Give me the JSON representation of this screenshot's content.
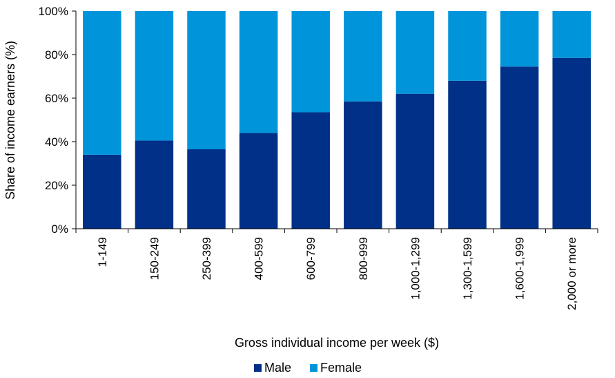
{
  "chart_data": {
    "type": "bar",
    "stacked": true,
    "categories": [
      "1-149",
      "150-249",
      "250-399",
      "400-599",
      "600-799",
      "800-999",
      "1,000-1,299",
      "1,300-1,599",
      "1,600-1,999",
      "2,000 or more"
    ],
    "series": [
      {
        "name": "Male",
        "color": "#003087",
        "values": [
          34,
          40.5,
          36.5,
          44,
          53.5,
          58.5,
          62,
          68,
          74.5,
          78.5
        ]
      },
      {
        "name": "Female",
        "color": "#0095DA",
        "values": [
          66,
          59.5,
          63.5,
          56,
          46.5,
          41.5,
          38,
          32,
          25.5,
          21.5
        ]
      }
    ],
    "title": "",
    "xlabel": "Gross individual income per week ($)",
    "ylabel": "Share of income earners (%)",
    "ylim": [
      0,
      100
    ],
    "yticks": [
      "0%",
      "20%",
      "40%",
      "60%",
      "80%",
      "100%"
    ],
    "grid": false,
    "legend": "bottom"
  }
}
